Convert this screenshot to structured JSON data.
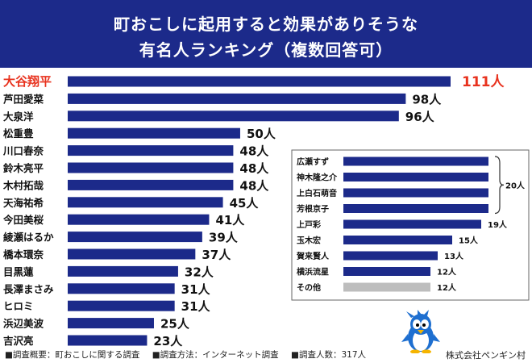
{
  "title": {
    "line1": "町おこしに起用すると効果がありそうな",
    "line2": "有名人ランキング（複数回答可）"
  },
  "colors": {
    "header_bg": "#1c2a8a",
    "bar": "#1c2a8a",
    "bar_other": "#bdbdbd",
    "highlight": "#e8321e"
  },
  "chart_data": [
    {
      "type": "bar",
      "orientation": "horizontal",
      "title": "町おこしに起用すると効果がありそうな有名人ランキング（複数回答可）",
      "unit": "人",
      "categories": [
        "大谷翔平",
        "芦田愛菜",
        "大泉洋",
        "松重豊",
        "川口春奈",
        "鈴木亮平",
        "木村拓哉",
        "天海祐希",
        "今田美桜",
        "綾瀬はるか",
        "橋本環奈",
        "目黒蓮",
        "長澤まさみ",
        "ヒロミ",
        "浜辺美波",
        "吉沢亮"
      ],
      "values": [
        111,
        98,
        96,
        50,
        48,
        48,
        48,
        45,
        41,
        39,
        37,
        32,
        31,
        31,
        25,
        23
      ],
      "value_labels": [
        "111人",
        "98人",
        "96人",
        "50人",
        "48人",
        "48人",
        "48人",
        "45人",
        "41人",
        "39人",
        "37人",
        "32人",
        "31人",
        "31人",
        "25人",
        "23人"
      ],
      "highlight_index": 0
    },
    {
      "type": "bar",
      "orientation": "horizontal",
      "title": "",
      "unit": "人",
      "categories": [
        "広瀬すず",
        "神木隆之介",
        "上白石萌音",
        "芳根京子",
        "上戸彩",
        "玉木宏",
        "賀来賢人",
        "横浜流星",
        "その他"
      ],
      "values": [
        20,
        20,
        20,
        20,
        19,
        15,
        13,
        12,
        12
      ],
      "value_labels": [
        "",
        "",
        "",
        "",
        "19人",
        "15人",
        "13人",
        "12人",
        "12人"
      ],
      "group_label": "20人",
      "gray_index": 8
    }
  ],
  "footer": {
    "item1": "■調査概要：町おこしに関する調査",
    "item2": "■調査方法：インターネット調査",
    "item3": "■調査人数：317人",
    "company": "株式会社ペンギン村"
  },
  "icons": {
    "mascot": "penguin-mascot-icon"
  }
}
